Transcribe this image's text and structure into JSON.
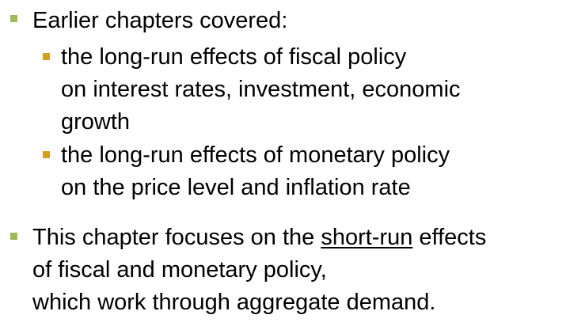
{
  "colors": {
    "level1_bullet": "#9bbb59",
    "level2_bullet": "#d4a017",
    "text": "#000000"
  },
  "bullets": {
    "b1": {
      "line1": "Earlier chapters covered:"
    },
    "b1a": {
      "line1": "the long-run effects of fiscal policy",
      "line2": "on interest rates, investment, economic",
      "line3": "growth"
    },
    "b1b": {
      "line1": "the long-run effects of monetary policy",
      "line2": "on the price level and inflation rate"
    },
    "b2": {
      "line1_pre": "This chapter focuses on the ",
      "line1_emph": "short-run",
      "line1_post": " effects",
      "line2": "of fiscal and monetary policy,",
      "line3": "which work through aggregate demand."
    }
  }
}
